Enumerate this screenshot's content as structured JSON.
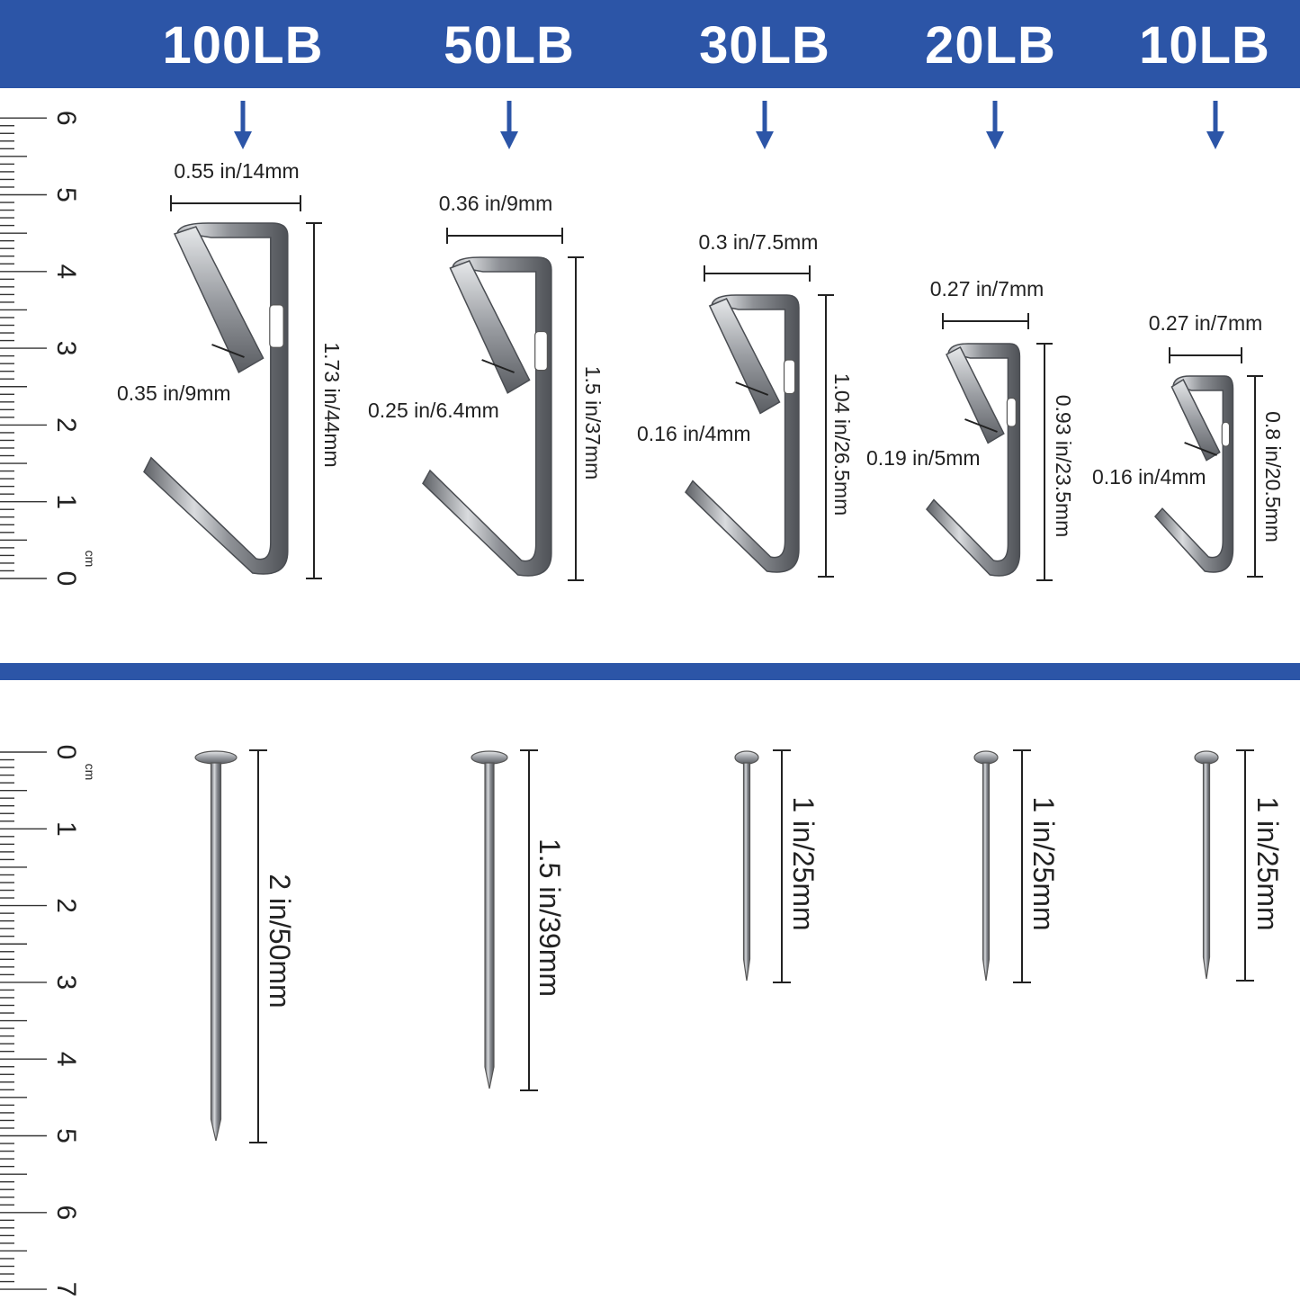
{
  "colors": {
    "brand_blue": "#2c55a7",
    "metal": "#9a9ca0",
    "text": "#222222"
  },
  "header": {
    "weights": [
      "100LB",
      "50LB",
      "30LB",
      "20LB",
      "10LB"
    ]
  },
  "ruler_top": {
    "unit": "cm",
    "numbers": [
      "0",
      "1",
      "2",
      "3",
      "4",
      "5",
      "6"
    ]
  },
  "ruler_bottom": {
    "unit": "cm",
    "numbers": [
      "0",
      "1",
      "2",
      "3",
      "4",
      "5",
      "6",
      "7"
    ]
  },
  "hooks": [
    {
      "width": "0.55 in/14mm",
      "height": "1.73 in/44mm",
      "slot": "0.35 in/9mm"
    },
    {
      "width": "0.36 in/9mm",
      "height": "1.5 in/37mm",
      "slot": "0.25 in/6.4mm"
    },
    {
      "width": "0.3 in/7.5mm",
      "height": "1.04 in/26.5mm",
      "slot": "0.16 in/4mm"
    },
    {
      "width": "0.27 in/7mm",
      "height": "0.93 in/23.5mm",
      "slot": "0.19 in/5mm"
    },
    {
      "width": "0.27 in/7mm",
      "height": "0.8 in/20.5mm",
      "slot": "0.16 in/4mm"
    }
  ],
  "nails": [
    {
      "length": "2 in/50mm"
    },
    {
      "length": "1.5 in/39mm"
    },
    {
      "length": "1 in/25mm"
    },
    {
      "length": "1 in/25mm"
    },
    {
      "length": "1 in/25mm"
    }
  ]
}
